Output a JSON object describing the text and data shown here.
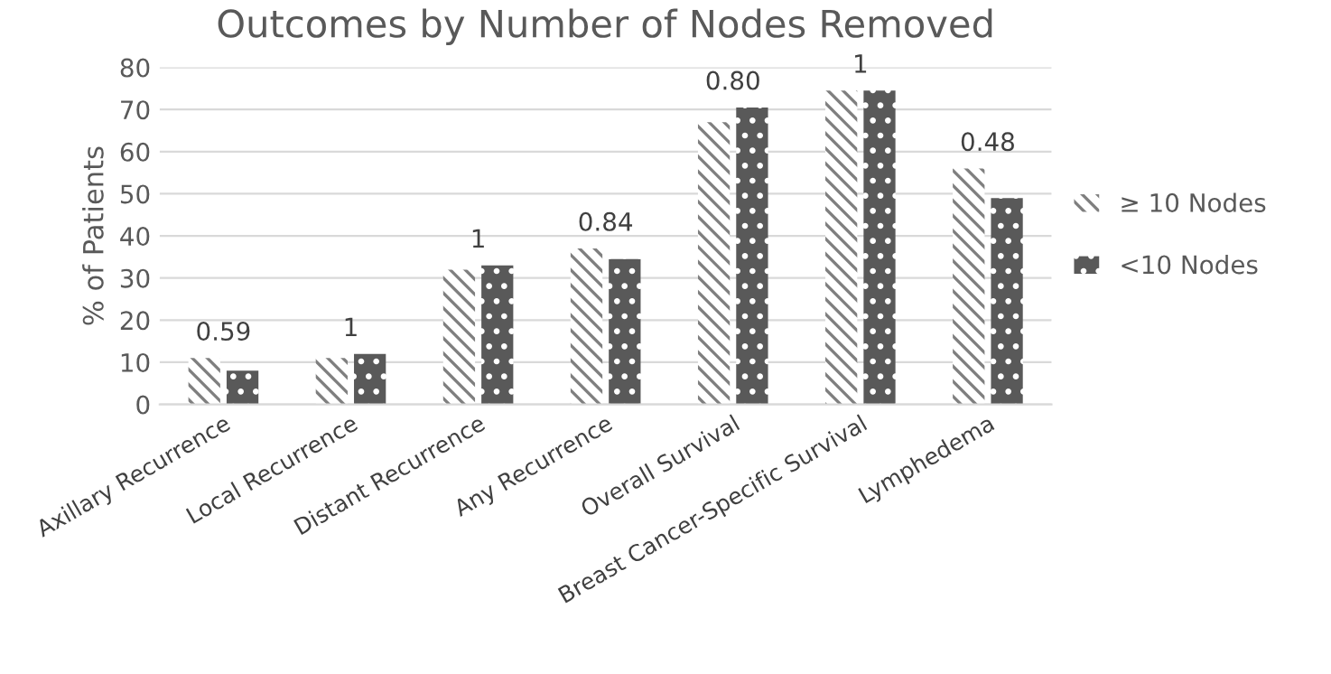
{
  "chart_data": {
    "type": "bar",
    "title": "Outcomes by Number of Nodes Removed",
    "ylabel": "% of Patients",
    "categories": [
      "Axillary Recurrence",
      "Local Recurrence",
      "Distant Recurrence",
      "Any Recurrence",
      "Overall Survival",
      "Breast Cancer-Specific Survival",
      "Lymphedema"
    ],
    "series": [
      {
        "name": "≥ 10 Nodes",
        "color": "#7f7f7f",
        "values": [
          11,
          11,
          32,
          37,
          67,
          74.5,
          56
        ]
      },
      {
        "name": "<10 Nodes",
        "color": "#595959",
        "values": [
          8,
          12,
          33,
          34.5,
          70.5,
          74.5,
          49
        ]
      }
    ],
    "annotations": [
      {
        "text": "0.59",
        "x": "Axillary Recurrence",
        "y": 11
      },
      {
        "text": "1",
        "x": "Local Recurrence",
        "y": 12
      },
      {
        "text": "1",
        "x": "Distant Recurrence",
        "y": 33
      },
      {
        "text": "0.84",
        "x": "Any Recurrence",
        "y": 37
      },
      {
        "text": "0.80",
        "x": "Overall Survival",
        "y": 70.5
      },
      {
        "text": "1",
        "x": "Breast Cancer-Specific Survival",
        "y": 74.5
      },
      {
        "text": "0.48",
        "x": "Lymphedema",
        "y": 56
      }
    ],
    "ylim": [
      0,
      80
    ],
    "yticks": [
      0,
      10,
      20,
      30,
      40,
      50,
      60,
      70,
      80
    ],
    "grid": "y",
    "legend": "right"
  }
}
